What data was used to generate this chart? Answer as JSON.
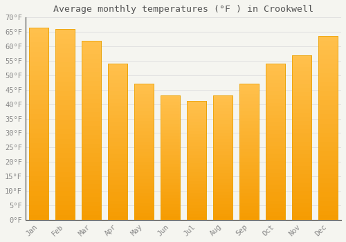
{
  "title": "Average monthly temperatures (°F ) in Crookwell",
  "months": [
    "Jan",
    "Feb",
    "Mar",
    "Apr",
    "May",
    "Jun",
    "Jul",
    "Aug",
    "Sep",
    "Oct",
    "Nov",
    "Dec"
  ],
  "values": [
    66.5,
    66.0,
    62.0,
    54.0,
    47.0,
    43.0,
    41.0,
    43.0,
    47.0,
    54.0,
    57.0,
    63.5
  ],
  "bar_color_top": "#FFC04C",
  "bar_color_bottom": "#F59B00",
  "bar_edge_color": "#E8A000",
  "background_color": "#F5F5F0",
  "plot_bg_color": "#F5F5F0",
  "grid_color": "#E0E0E0",
  "text_color": "#888888",
  "title_color": "#555555",
  "axis_color": "#333333",
  "ylim": [
    0,
    70
  ],
  "ytick_step": 5,
  "figsize": [
    5.0,
    3.5
  ],
  "dpi": 100
}
